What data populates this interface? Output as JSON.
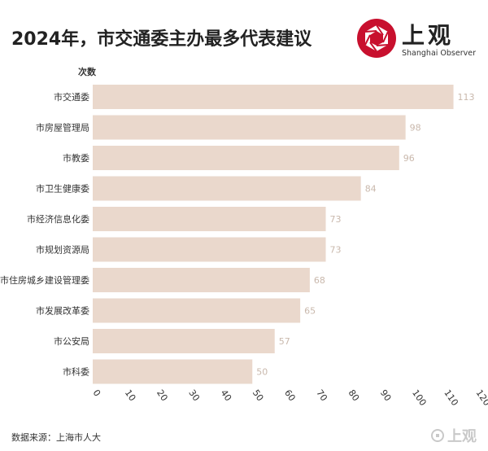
{
  "title": "2024年，市交通委主办最多代表建议",
  "logo": {
    "name": "上观",
    "subtitle": "Shanghai Observer",
    "mark_color": "#c8102e"
  },
  "footer_logo": "上观",
  "source": "数据来源：上海市人大",
  "colors": {
    "bar": "#ead8cc",
    "value_label": "#c9b8ac",
    "axis_text": "#333333"
  },
  "chart_data": {
    "type": "bar",
    "orientation": "horizontal",
    "ylabel": "次数",
    "categories": [
      "市交通委",
      "市房屋管理局",
      "市教委",
      "市卫生健康委",
      "市经济信息化委",
      "市规划资源局",
      "市住房城乡建设管理委",
      "市发展改革委",
      "市公安局",
      "市科委"
    ],
    "values": [
      113,
      98,
      96,
      84,
      73,
      73,
      68,
      65,
      57,
      50
    ],
    "xlim": [
      0,
      120
    ],
    "xticks": [
      0,
      10,
      20,
      30,
      40,
      50,
      60,
      70,
      80,
      90,
      100,
      110,
      120
    ],
    "grid": false,
    "legend": "none"
  }
}
